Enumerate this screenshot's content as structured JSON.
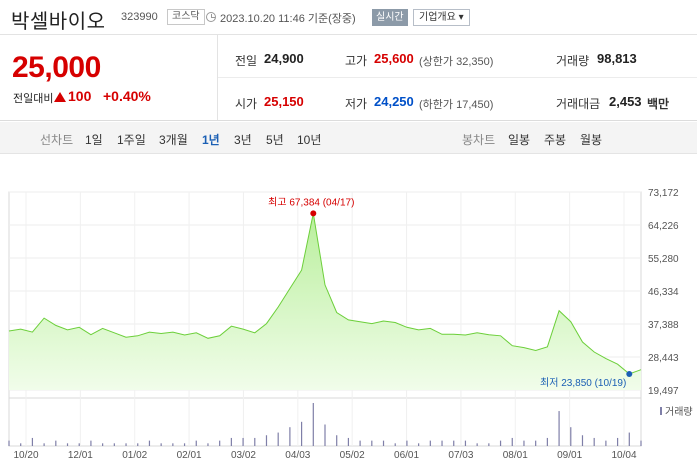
{
  "header": {
    "name": "박셀바이오",
    "code": "323990",
    "market": "코스닥",
    "timestamp": "2023.10.20 11:46",
    "basis": "기준(장중)",
    "realtime_btn": "실시간",
    "company_info_btn": "기업개요 ▾"
  },
  "summary": {
    "price": "25,000",
    "change_label": "전일대비",
    "change": "100",
    "change_pct": "+0.40%",
    "prev_label": "전일",
    "prev": "24,900",
    "high_label": "고가",
    "high": "25,600",
    "upper_limit": "(상한가 32,350)",
    "volume_label": "거래량",
    "volume": "98,813",
    "open_label": "시가",
    "open": "25,150",
    "low_label": "저가",
    "low": "24,250",
    "lower_limit": "(하한가 17,450)",
    "amount_label": "거래대금",
    "amount": "2,453",
    "amount_unit": "백만"
  },
  "toolbar": {
    "line_chart": "선차트",
    "periods": [
      "1일",
      "1주일",
      "3개월",
      "1년",
      "3년",
      "5년",
      "10년"
    ],
    "selected_period": "1년",
    "candle_chart": "봉차트",
    "candle_periods": [
      "일봉",
      "주봉",
      "월봉"
    ]
  },
  "colors": {
    "up": "#d60000",
    "down": "#0050c8",
    "area": "#d7f5c6",
    "line": "#6ccf3a"
  },
  "chart_data": {
    "type": "area",
    "ylim": [
      19497,
      73172
    ],
    "yticks": [
      "73,172",
      "64,226",
      "55,280",
      "46,334",
      "37,388",
      "28,443",
      "19,497"
    ],
    "xticks": [
      "10/20",
      "12/01",
      "01/02",
      "02/01",
      "03/02",
      "04/03",
      "05/02",
      "06/01",
      "07/03",
      "08/01",
      "09/01",
      "10/04"
    ],
    "max_label": "최고 67,384 (04/17)",
    "min_label": "최저 23,850 (10/19)",
    "volume_legend": "거래량",
    "x": [
      "10/20",
      "10/27",
      "11/03",
      "11/10",
      "11/17",
      "11/24",
      "12/01",
      "12/08",
      "12/15",
      "12/22",
      "12/29",
      "01/05",
      "01/12",
      "01/19",
      "01/26",
      "02/02",
      "02/09",
      "02/16",
      "02/23",
      "03/02",
      "03/09",
      "03/16",
      "03/23",
      "03/30",
      "04/06",
      "04/13",
      "04/17",
      "04/20",
      "04/27",
      "05/04",
      "05/11",
      "05/18",
      "05/25",
      "06/01",
      "06/08",
      "06/15",
      "06/22",
      "06/29",
      "07/06",
      "07/13",
      "07/20",
      "07/27",
      "08/03",
      "08/10",
      "08/17",
      "08/24",
      "08/31",
      "09/07",
      "09/14",
      "09/21",
      "09/28",
      "10/05",
      "10/12",
      "10/19",
      "10/20"
    ],
    "values": [
      35500,
      36000,
      35200,
      39000,
      37000,
      35800,
      36500,
      34500,
      36200,
      35000,
      33800,
      34200,
      35200,
      34800,
      35200,
      34400,
      35000,
      33500,
      34200,
      36800,
      36000,
      35000,
      37500,
      42000,
      47000,
      52000,
      67384,
      48000,
      40500,
      38500,
      38000,
      37500,
      38200,
      37800,
      36500,
      35800,
      36200,
      34600,
      34600,
      34400,
      35000,
      34500,
      34200,
      31500,
      31000,
      30200,
      31200,
      41000,
      38000,
      32500,
      29800,
      28000,
      26500,
      23850,
      25000
    ],
    "volume": [
      2,
      1,
      3,
      1,
      2,
      1,
      1,
      2,
      1,
      1,
      1,
      1,
      2,
      1,
      1,
      1,
      2,
      1,
      2,
      3,
      3,
      3,
      4,
      5,
      7,
      9,
      16,
      8,
      4,
      3,
      2,
      2,
      2,
      1,
      2,
      1,
      2,
      2,
      2,
      2,
      1,
      1,
      2,
      3,
      2,
      2,
      3,
      13,
      7,
      4,
      3,
      2,
      3,
      5,
      2
    ]
  }
}
